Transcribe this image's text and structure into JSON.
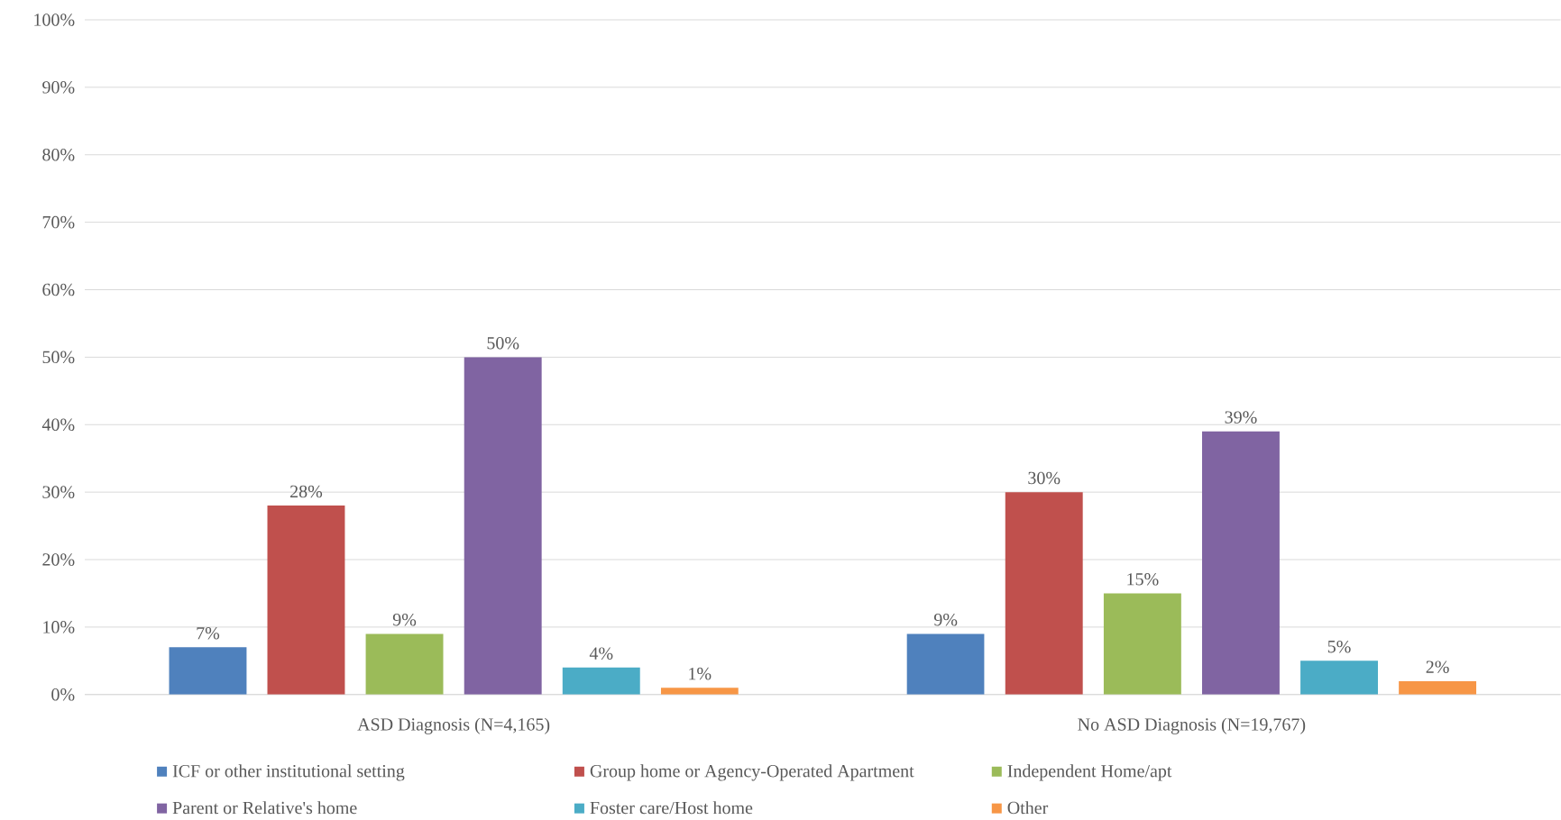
{
  "chart_data": {
    "type": "bar",
    "categories": [
      "ASD Diagnosis (N=4,165)",
      "No ASD Diagnosis (N=19,767)"
    ],
    "series": [
      {
        "name": "ICF or other institutional setting",
        "color": "#4f81bd",
        "values": [
          7,
          9
        ],
        "value_labels": [
          "7%",
          "9%"
        ]
      },
      {
        "name": "Group home or Agency-Operated Apartment",
        "color": "#c0504d",
        "values": [
          28,
          30
        ],
        "value_labels": [
          "28%",
          "30%"
        ]
      },
      {
        "name": "Independent Home/apt",
        "color": "#9bbb59",
        "values": [
          9,
          15
        ],
        "value_labels": [
          "9%",
          "15%"
        ]
      },
      {
        "name": "Parent or Relative's home",
        "color": "#8064a2",
        "values": [
          50,
          39
        ],
        "value_labels": [
          "50%",
          "39%"
        ]
      },
      {
        "name": "Foster care/Host home",
        "color": "#4bacc6",
        "values": [
          4,
          5
        ],
        "value_labels": [
          "4%",
          "5%"
        ]
      },
      {
        "name": "Other",
        "color": "#f79646",
        "values": [
          1,
          2
        ],
        "value_labels": [
          "1%",
          "2%"
        ]
      }
    ],
    "ylim": [
      0,
      100
    ],
    "yticks": [
      {
        "value": 0,
        "label": "0%"
      },
      {
        "value": 10,
        "label": "10%"
      },
      {
        "value": 20,
        "label": "20%"
      },
      {
        "value": 30,
        "label": "30%"
      },
      {
        "value": 40,
        "label": "40%"
      },
      {
        "value": 50,
        "label": "50%"
      },
      {
        "value": 60,
        "label": "60%"
      },
      {
        "value": 70,
        "label": "70%"
      },
      {
        "value": 80,
        "label": "80%"
      },
      {
        "value": 90,
        "label": "90%"
      },
      {
        "value": 100,
        "label": "100%"
      }
    ],
    "grid": "y",
    "legend": "bottom"
  }
}
